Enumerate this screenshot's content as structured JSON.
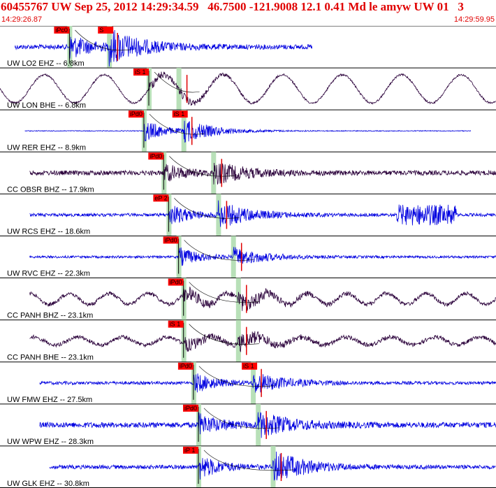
{
  "header": {
    "title": "60455767 UW Sep 25, 2012 14:29:34.59   46.7500 -121.9008 12.1 0.41 Md le amyw UW 01   3",
    "t_start": "14:29:26.87",
    "t_end": "14:29:59.95"
  },
  "colors": {
    "header": "#e00000",
    "vertical_trace": "#0000e0",
    "horizontal_trace": "#2a003a",
    "pick_mark": "#e00000",
    "pick_box": "#ff0000",
    "window_band": "#b8e0b8"
  },
  "chart_data": {
    "type": "line",
    "x_range_label": [
      "14:29:26.87",
      "14:29:59.95"
    ],
    "series": [
      {
        "name": "UW LO2 EHZ -- 6.8km",
        "component": "vertical",
        "picks": [
          "iPc0",
          "S"
        ],
        "trace": [
          3,
          63
        ],
        "p": 14,
        "s": 22,
        "noise": 0.12,
        "amp": 1.0,
        "coda": 0.85
      },
      {
        "name": "UW LON BHE -- 6.8km",
        "component": "horizontal",
        "picks": [
          "iS 1"
        ],
        "trace": [
          0,
          100
        ],
        "p": 30,
        "s": 36,
        "noise": 0.05,
        "amp": 0.45,
        "coda": 0.3,
        "sine_amp": 0.9,
        "sine_period": 12
      },
      {
        "name": "UW RER EHZ -- 8.9km",
        "component": "vertical",
        "picks": [
          "iPd0",
          "iS 1"
        ],
        "trace": [
          5,
          95
        ],
        "p": 29,
        "s": 37,
        "noise": 0.02,
        "amp": 1.0,
        "coda": 0.55
      },
      {
        "name": "CC OBSR BHZ -- 17.9km",
        "component": "horizontal",
        "picks": [
          "iPd0"
        ],
        "trace": [
          6,
          100
        ],
        "p": 33,
        "s": 43,
        "noise": 0.12,
        "amp": 0.7,
        "coda": 0.75
      },
      {
        "name": "UW RCS EHZ -- 18.6km",
        "component": "vertical",
        "picks": [
          "eP 2"
        ],
        "trace": [
          6,
          100
        ],
        "p": 34,
        "s": 44,
        "noise": 0.08,
        "amp": 0.9,
        "coda": 0.7,
        "burst": [
          80,
          92
        ]
      },
      {
        "name": "UW RVC EHZ -- 22.3km",
        "component": "vertical",
        "picks": [
          "iPd0"
        ],
        "trace": [
          6,
          100
        ],
        "p": 36,
        "s": 47,
        "noise": 0.06,
        "amp": 0.8,
        "coda": 0.55
      },
      {
        "name": "CC PANH BHZ -- 23.1km",
        "component": "horizontal",
        "picks": [
          "iPd0"
        ],
        "trace": [
          6,
          100
        ],
        "p": 37,
        "s": 48,
        "noise": 0.1,
        "amp": 0.6,
        "coda": 0.65,
        "sine_amp": 0.35,
        "sine_period": 8
      },
      {
        "name": "CC PANH BHE -- 23.1km",
        "component": "horizontal",
        "picks": [
          "iS 1"
        ],
        "trace": [
          6,
          100
        ],
        "p": 37,
        "s": 48,
        "noise": 0.1,
        "amp": 0.55,
        "coda": 0.65,
        "sine_amp": 0.25,
        "sine_period": 9
      },
      {
        "name": "UW FMW EHZ -- 27.5km",
        "component": "vertical",
        "picks": [
          "iPd0",
          "iS 1"
        ],
        "trace": [
          8,
          100
        ],
        "p": 39,
        "s": 51,
        "noise": 0.08,
        "amp": 0.85,
        "coda": 0.6
      },
      {
        "name": "UW WPW EHZ -- 28.3km",
        "component": "vertical",
        "picks": [
          "iPd0"
        ],
        "trace": [
          8,
          100
        ],
        "p": 40,
        "s": 52,
        "noise": 0.14,
        "amp": 0.85,
        "coda": 0.7
      },
      {
        "name": "UW GLK EHZ -- 30.8km",
        "component": "vertical",
        "picks": [
          "iP 1"
        ],
        "trace": [
          10,
          100
        ],
        "p": 40,
        "s": 55,
        "noise": 0.1,
        "amp": 1.0,
        "coda": 0.8
      }
    ]
  }
}
